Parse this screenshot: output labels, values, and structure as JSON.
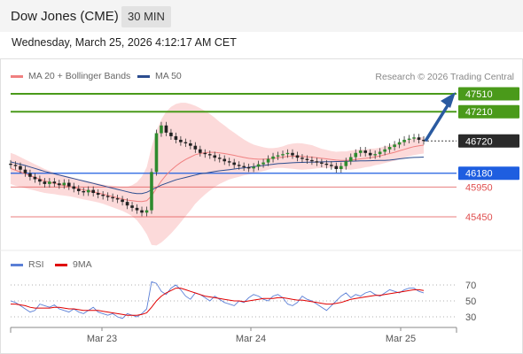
{
  "header": {
    "title": "Dow Jones (CME)",
    "interval": "30 MIN"
  },
  "timestamp": "Wednesday, March 25, 2026 4:12:17 AM CET",
  "legend": {
    "bollinger": {
      "label": "MA 20 + Bollinger Bands",
      "color": "#f08080"
    },
    "ma50": {
      "label": "MA 50",
      "color": "#2c4d8f"
    },
    "rsi": {
      "label": "RSI",
      "color": "#5b7fd6"
    },
    "rsi_ma": {
      "label": "9MA",
      "color": "#e00000"
    }
  },
  "credit": "Research © 2026 Trading Central",
  "colors": {
    "resistance": "#4a9a1a",
    "support_blue": "#1e5ee0",
    "support_red": "#e05050",
    "up": "#2e8b2e",
    "down": "#222222",
    "current": "#2a2a2a",
    "arrow": "#2a5aa0"
  },
  "chart_data": {
    "type": "line",
    "x_labels": [
      "Mar 23",
      "Mar 24",
      "Mar 25"
    ],
    "price_ylim": [
      45000,
      48000
    ],
    "levels": [
      {
        "value": 47510,
        "label": "47510",
        "kind": "resistance"
      },
      {
        "value": 47210,
        "label": "47210",
        "kind": "resistance"
      },
      {
        "value": 46720,
        "label": "46720",
        "kind": "current"
      },
      {
        "value": 46180,
        "label": "46180",
        "kind": "pivot"
      },
      {
        "value": 45950,
        "label": "45950",
        "kind": "support"
      },
      {
        "value": 45450,
        "label": "45450",
        "kind": "support"
      }
    ],
    "price": [
      46320,
      46300,
      46240,
      46180,
      46120,
      46080,
      46040,
      46000,
      46040,
      46010,
      45980,
      46020,
      45960,
      45920,
      45880,
      45860,
      45900,
      45850,
      45820,
      45800,
      45780,
      45760,
      45740,
      45700,
      45640,
      45600,
      45560,
      45520,
      45560,
      46200,
      46850,
      46980,
      46860,
      46800,
      46740,
      46700,
      46680,
      46640,
      46580,
      46520,
      46500,
      46480,
      46440,
      46420,
      46380,
      46360,
      46320,
      46300,
      46280,
      46260,
      46290,
      46330,
      46360,
      46420,
      46460,
      46480,
      46500,
      46520,
      46480,
      46440,
      46420,
      46400,
      46380,
      46360,
      46340,
      46320,
      46300,
      46250,
      46300,
      46380,
      46450,
      46520,
      46560,
      46520,
      46480,
      46500,
      46540,
      46580,
      46620,
      46660,
      46700,
      46740,
      46760,
      46780,
      46740,
      46720
    ],
    "ma20": [
      46260,
      46230,
      46200,
      46170,
      46140,
      46110,
      46080,
      46050,
      46030,
      46010,
      45990,
      45975,
      45960,
      45940,
      45920,
      45900,
      45885,
      45870,
      45850,
      45830,
      45810,
      45790,
      45770,
      45750,
      45730,
      45720,
      45710,
      45705,
      45720,
      45800,
      45930,
      46050,
      46150,
      46230,
      46300,
      46360,
      46410,
      46450,
      46490,
      46510,
      46525,
      46530,
      46530,
      46520,
      46510,
      46495,
      46480,
      46460,
      46445,
      46430,
      46420,
      46415,
      46415,
      46420,
      46430,
      46440,
      46450,
      46460,
      46465,
      46465,
      46460,
      46455,
      46450,
      46440,
      46430,
      46420,
      46410,
      46400,
      46395,
      46395,
      46400,
      46410,
      46420,
      46430,
      46440,
      46455,
      46470,
      46490,
      46510,
      46530,
      46555,
      46580,
      46605,
      46625,
      46640,
      46650
    ],
    "bb_width": [
      260,
      260,
      250,
      240,
      230,
      220,
      210,
      200,
      190,
      180,
      175,
      170,
      165,
      160,
      160,
      160,
      160,
      160,
      160,
      160,
      170,
      180,
      190,
      200,
      220,
      260,
      320,
      420,
      560,
      820,
      960,
      1030,
      1060,
      1060,
      1040,
      1000,
      950,
      890,
      820,
      760,
      700,
      640,
      580,
      520,
      470,
      420,
      380,
      340,
      300,
      270,
      240,
      220,
      200,
      180,
      170,
      170,
      180,
      200,
      210,
      220,
      220,
      210,
      200,
      180,
      160,
      150,
      140,
      140,
      150,
      150,
      160,
      160,
      160,
      150,
      150,
      140,
      140,
      140,
      140,
      140,
      140,
      140,
      140,
      140,
      140,
      140
    ],
    "ma50": [
      46370,
      46350,
      46330,
      46310,
      46285,
      46260,
      46235,
      46210,
      46190,
      46170,
      46150,
      46130,
      46110,
      46090,
      46070,
      46050,
      46030,
      46010,
      45990,
      45970,
      45950,
      45930,
      45910,
      45890,
      45870,
      45850,
      45840,
      45840,
      45860,
      45900,
      45940,
      45980,
      46010,
      46040,
      46070,
      46090,
      46110,
      46130,
      46150,
      46170,
      46180,
      46195,
      46210,
      46220,
      46230,
      46240,
      46250,
      46260,
      46270,
      46280,
      46290,
      46300,
      46310,
      46320,
      46330,
      46340,
      46345,
      46350,
      46355,
      46360,
      46362,
      46364,
      46366,
      46368,
      46370,
      46372,
      46374,
      46376,
      46378,
      46380,
      46382,
      46384,
      46386,
      46388,
      46390,
      46392,
      46394,
      46396,
      46400,
      46410,
      46420,
      46430,
      46440,
      46445,
      46448,
      46450
    ],
    "rsi_ylim": [
      15,
      80
    ],
    "rsi_ticks": [
      70,
      50,
      30
    ],
    "rsi": [
      50,
      48,
      44,
      40,
      36,
      38,
      46,
      44,
      42,
      45,
      40,
      38,
      36,
      40,
      36,
      34,
      38,
      42,
      36,
      34,
      32,
      34,
      30,
      28,
      34,
      32,
      30,
      34,
      40,
      74,
      72,
      62,
      58,
      66,
      70,
      64,
      56,
      52,
      60,
      58,
      54,
      50,
      56,
      52,
      48,
      46,
      44,
      50,
      48,
      54,
      58,
      56,
      52,
      50,
      56,
      58,
      54,
      46,
      44,
      48,
      56,
      52,
      50,
      46,
      42,
      38,
      44,
      50,
      56,
      60,
      54,
      58,
      56,
      60,
      62,
      58,
      56,
      60,
      64,
      62,
      60,
      64,
      66,
      66,
      62,
      60
    ],
    "rsi_ma": [
      46,
      46,
      45,
      44,
      42,
      41,
      41,
      41,
      41,
      42,
      42,
      41,
      40,
      40,
      39,
      38,
      38,
      38,
      38,
      37,
      36,
      35,
      34,
      33,
      32,
      32,
      32,
      33,
      35,
      42,
      50,
      56,
      60,
      63,
      66,
      66,
      64,
      62,
      60,
      58,
      56,
      55,
      54,
      53,
      52,
      51,
      50,
      50,
      49,
      50,
      51,
      52,
      53,
      53,
      53,
      54,
      54,
      53,
      52,
      51,
      51,
      50,
      49,
      48,
      47,
      46,
      46,
      47,
      48,
      50,
      52,
      53,
      54,
      55,
      56,
      57,
      57,
      58,
      59,
      60,
      61,
      62,
      63,
      64,
      64,
      63
    ]
  }
}
